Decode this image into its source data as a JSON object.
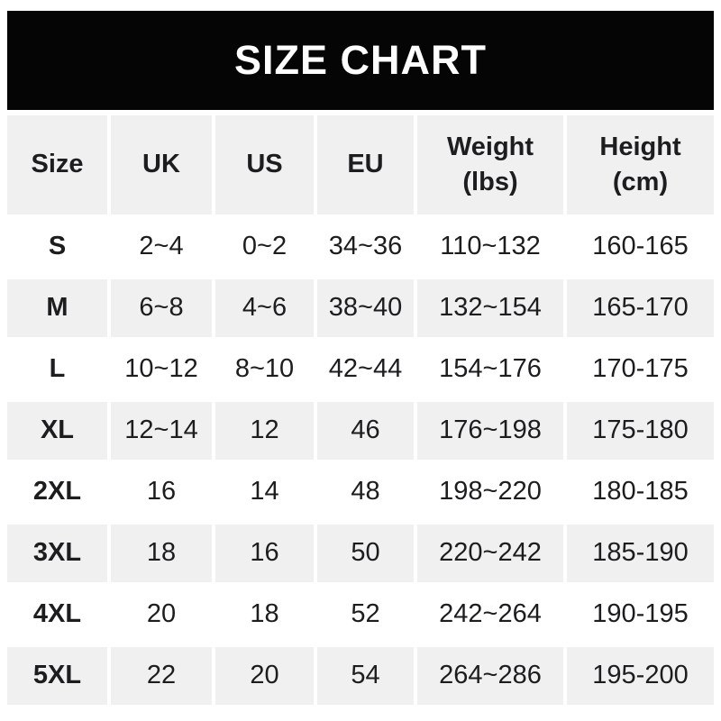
{
  "chart_data": {
    "type": "table",
    "title": "SIZE CHART",
    "columns": [
      "Size",
      "UK",
      "US",
      "EU",
      "Weight\n(lbs)",
      "Height\n(cm)"
    ],
    "rows": [
      {
        "size": "S",
        "uk": "2~4",
        "us": "0~2",
        "eu": "34~36",
        "weight": "110~132",
        "height": "160-165"
      },
      {
        "size": "M",
        "uk": "6~8",
        "us": "4~6",
        "eu": "38~40",
        "weight": "132~154",
        "height": "165-170"
      },
      {
        "size": "L",
        "uk": "10~12",
        "us": "8~10",
        "eu": "42~44",
        "weight": "154~176",
        "height": "170-175"
      },
      {
        "size": "XL",
        "uk": "12~14",
        "us": "12",
        "eu": "46",
        "weight": "176~198",
        "height": "175-180"
      },
      {
        "size": "2XL",
        "uk": "16",
        "us": "14",
        "eu": "48",
        "weight": "198~220",
        "height": "180-185"
      },
      {
        "size": "3XL",
        "uk": "18",
        "us": "16",
        "eu": "50",
        "weight": "220~242",
        "height": "185-190"
      },
      {
        "size": "4XL",
        "uk": "20",
        "us": "18",
        "eu": "52",
        "weight": "242~264",
        "height": "190-195"
      },
      {
        "size": "5XL",
        "uk": "22",
        "us": "20",
        "eu": "54",
        "weight": "264~286",
        "height": "195-200"
      }
    ],
    "layout_hints": {
      "legend": "none",
      "grid": "alternating-row-shading",
      "alt_rows_shaded": [
        "M",
        "XL",
        "3XL",
        "5XL"
      ]
    }
  },
  "colors": {
    "title_bar_bg": "#050505",
    "title_text": "#ffffff",
    "header_cell_bg": "#f0f0f0",
    "alt_row_bg": "#f0f0f0",
    "row_bg": "#ffffff",
    "body_text": "#1d1d1f",
    "page_bg": "#ffffff"
  }
}
